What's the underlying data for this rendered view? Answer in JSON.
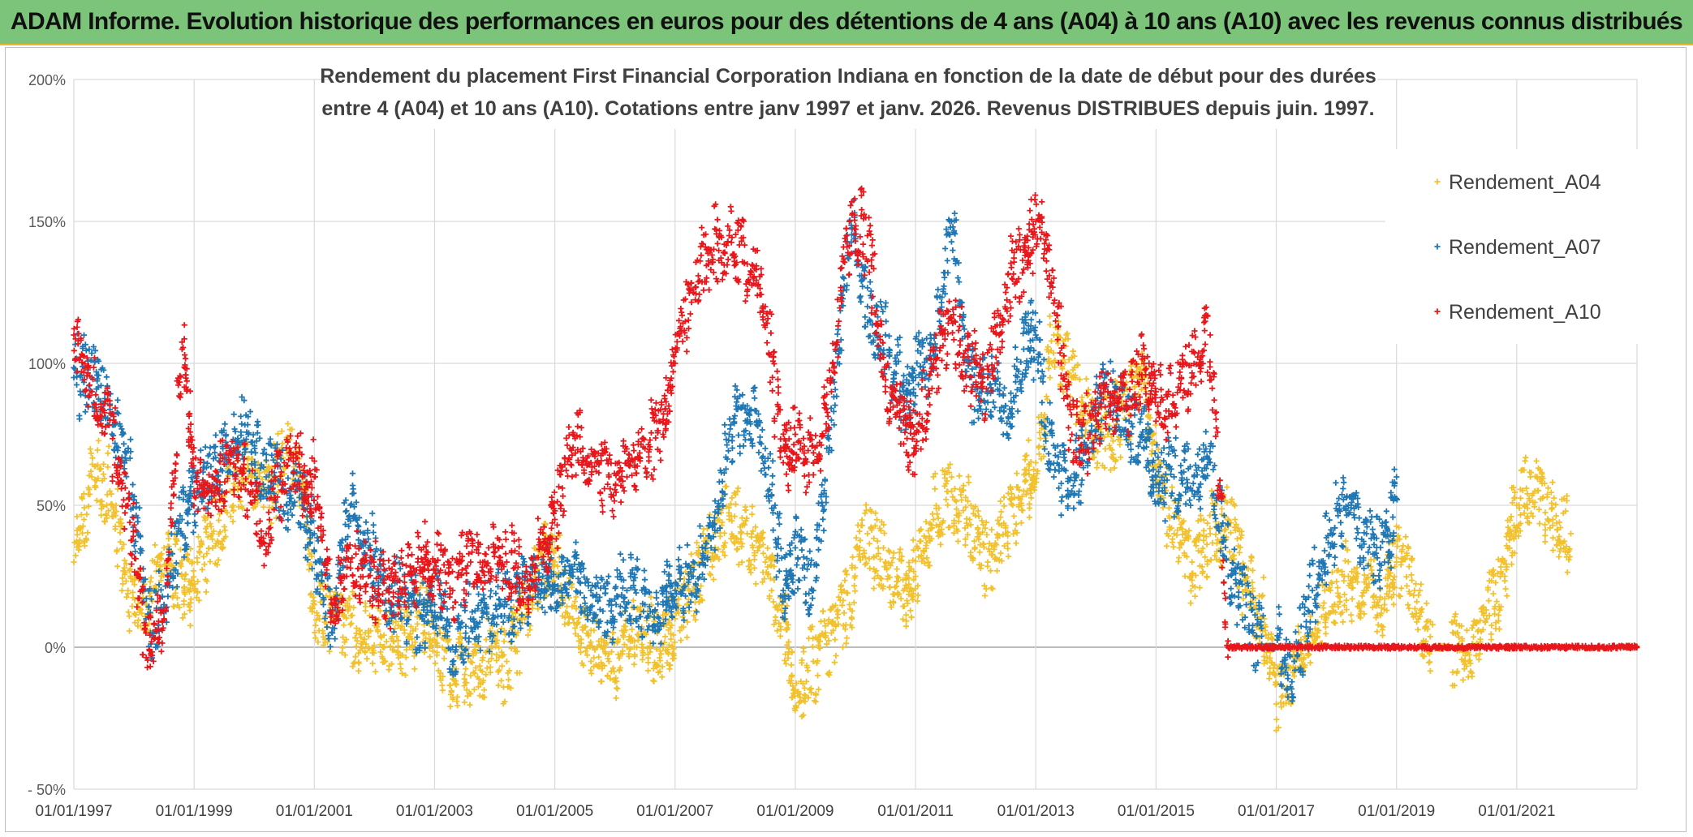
{
  "banner": {
    "title": "ADAM Informe. Evolution historique des performances en euros pour des détentions de 4 ans (A04) à 10 ans (A10) avec les revenus connus distribués"
  },
  "chart_data": {
    "type": "scatter",
    "title_lines": [
      "Rendement du placement First Financial Corporation Indiana en fonction de la date de début pour des durées",
      "entre 4 (A04) et 10 ans (A10). Cotations entre janv 1997 et janv. 2026. Revenus DISTRIBUES depuis juin. 1997."
    ],
    "xlabel": "",
    "ylabel": "",
    "x_range": [
      1997.0,
      2023.0
    ],
    "ylim": [
      -50,
      200
    ],
    "y_ticks": [
      -50,
      0,
      50,
      100,
      150,
      200
    ],
    "y_tick_labels": [
      "- 50%",
      "0%",
      "50%",
      "100%",
      "150%",
      "200%"
    ],
    "x_ticks": [
      1997,
      1999,
      2001,
      2003,
      2005,
      2007,
      2009,
      2011,
      2013,
      2015,
      2017,
      2019,
      2021
    ],
    "x_tick_labels": [
      "01/01/1997",
      "01/01/1999",
      "01/01/2001",
      "01/01/2003",
      "01/01/2005",
      "01/01/2007",
      "01/01/2009",
      "01/01/2011",
      "01/01/2013",
      "01/01/2015",
      "01/01/2017",
      "01/01/2019",
      "01/01/2021"
    ],
    "grid": true,
    "legend_position": "right",
    "marker": "+",
    "series": [
      {
        "name": "Rendement_A04",
        "color": "#f2c12e",
        "x": [
          1997.0,
          1997.3,
          1997.6,
          1997.9,
          1998.2,
          1998.5,
          1998.8,
          1999.0,
          1999.3,
          1999.6,
          1999.9,
          2000.2,
          2000.5,
          2000.8,
          2001.0,
          2001.3,
          2001.6,
          2001.9,
          2002.2,
          2002.5,
          2002.8,
          2003.0,
          2003.3,
          2003.6,
          2003.9,
          2004.2,
          2004.5,
          2004.8,
          2005.0,
          2005.3,
          2005.6,
          2005.9,
          2006.2,
          2006.5,
          2006.8,
          2007.0,
          2007.3,
          2007.6,
          2007.9,
          2008.2,
          2008.5,
          2008.8,
          2009.0,
          2009.3,
          2009.6,
          2009.9,
          2010.2,
          2010.5,
          2010.8,
          2011.0,
          2011.3,
          2011.6,
          2011.9,
          2012.2,
          2012.5,
          2012.8,
          2013.0,
          2013.3,
          2013.6,
          2013.9,
          2014.2,
          2014.5,
          2014.8,
          2015.0,
          2015.3,
          2015.6,
          2015.9,
          2016.2,
          2016.5,
          2016.8,
          2017.0,
          2017.3,
          2017.6,
          2017.9,
          2018.2,
          2018.5,
          2018.8,
          2019.0,
          2019.3,
          2019.6,
          2019.9,
          2020.2,
          2020.5,
          2020.8,
          2021.0,
          2021.3,
          2021.6,
          2021.9
        ],
        "values": [
          30,
          60,
          55,
          20,
          15,
          35,
          25,
          20,
          40,
          55,
          60,
          55,
          65,
          60,
          15,
          10,
          8,
          5,
          2,
          5,
          10,
          5,
          -10,
          -10,
          -5,
          -5,
          10,
          30,
          30,
          10,
          -5,
          -5,
          0,
          5,
          0,
          10,
          20,
          35,
          45,
          40,
          30,
          10,
          -15,
          -5,
          5,
          15,
          40,
          30,
          20,
          25,
          45,
          55,
          45,
          30,
          40,
          55,
          65,
          110,
          95,
          80,
          75,
          85,
          95,
          60,
          40,
          30,
          40,
          45,
          20,
          10,
          -20,
          -5,
          5,
          20,
          25,
          20,
          15,
          30,
          20,
          0,
          0,
          -5,
          10,
          25,
          50,
          55,
          45,
          40
        ]
      },
      {
        "name": "Rendement_A07",
        "color": "#1f77b4",
        "x": [
          1997.0,
          1997.3,
          1997.6,
          1997.9,
          1998.2,
          1998.5,
          1998.8,
          1999.0,
          1999.3,
          1999.6,
          1999.9,
          2000.2,
          2000.5,
          2000.8,
          2001.0,
          2001.3,
          2001.6,
          2001.9,
          2002.2,
          2002.5,
          2002.8,
          2003.0,
          2003.3,
          2003.6,
          2003.9,
          2004.2,
          2004.5,
          2004.8,
          2005.0,
          2005.3,
          2005.6,
          2005.9,
          2006.2,
          2006.5,
          2006.8,
          2007.0,
          2007.3,
          2007.6,
          2007.9,
          2008.2,
          2008.5,
          2008.8,
          2009.0,
          2009.3,
          2009.6,
          2009.9,
          2010.2,
          2010.5,
          2010.8,
          2011.0,
          2011.3,
          2011.6,
          2011.9,
          2012.2,
          2012.5,
          2012.8,
          2013.0,
          2013.3,
          2013.6,
          2013.9,
          2014.2,
          2014.5,
          2014.8,
          2015.0,
          2015.3,
          2015.6,
          2015.9,
          2016.2,
          2016.5,
          2016.8,
          2017.0,
          2017.3,
          2017.6,
          2017.9,
          2018.2,
          2018.5,
          2018.8,
          2019.0
        ],
        "values": [
          95,
          95,
          80,
          70,
          10,
          15,
          45,
          55,
          60,
          70,
          75,
          60,
          55,
          50,
          40,
          5,
          50,
          35,
          20,
          15,
          10,
          15,
          0,
          10,
          10,
          15,
          20,
          25,
          20,
          25,
          20,
          15,
          20,
          15,
          15,
          20,
          25,
          35,
          75,
          85,
          70,
          20,
          35,
          20,
          80,
          150,
          120,
          110,
          90,
          95,
          105,
          150,
          95,
          90,
          85,
          105,
          110,
          60,
          55,
          75,
          90,
          80,
          70,
          60,
          60,
          55,
          65,
          25,
          15,
          0,
          0,
          -5,
          20,
          40,
          50,
          40,
          30,
          60
        ]
      },
      {
        "name": "Rendement_A10",
        "color": "#e8171b",
        "x": [
          1997.0,
          1997.3,
          1997.6,
          1997.9,
          1998.2,
          1998.5,
          1998.8,
          1999.0,
          1999.3,
          1999.6,
          1999.9,
          2000.2,
          2000.5,
          2000.8,
          2001.0,
          2001.3,
          2001.6,
          2001.9,
          2002.2,
          2002.5,
          2002.8,
          2003.0,
          2003.3,
          2003.6,
          2003.9,
          2004.2,
          2004.5,
          2004.8,
          2005.0,
          2005.3,
          2005.6,
          2005.9,
          2006.2,
          2006.5,
          2006.8,
          2007.0,
          2007.3,
          2007.6,
          2007.9,
          2008.2,
          2008.5,
          2008.8,
          2009.0,
          2009.3,
          2009.6,
          2009.9,
          2010.2,
          2010.5,
          2010.8,
          2011.0,
          2011.3,
          2011.6,
          2011.9,
          2012.2,
          2012.5,
          2012.8,
          2013.0,
          2013.3,
          2013.6,
          2013.9,
          2014.2,
          2014.5,
          2014.8,
          2015.0,
          2015.3,
          2015.6,
          2015.9,
          2016.2,
          2016.5,
          2016.8,
          2017.0,
          2017.3,
          2017.6,
          2017.9,
          2018.2,
          2018.5,
          2018.8,
          2019.0,
          2019.3,
          2019.6,
          2019.9,
          2020.2,
          2020.5,
          2020.8,
          2021.0,
          2021.3,
          2021.6,
          2021.9,
          2022.2,
          2022.5,
          2022.8,
          2023.0
        ],
        "values": [
          110,
          90,
          80,
          50,
          5,
          10,
          105,
          55,
          55,
          65,
          55,
          40,
          65,
          60,
          60,
          15,
          30,
          25,
          20,
          25,
          30,
          30,
          20,
          30,
          35,
          30,
          25,
          35,
          45,
          75,
          65,
          60,
          60,
          70,
          75,
          100,
          125,
          140,
          145,
          135,
          120,
          65,
          75,
          65,
          90,
          150,
          145,
          90,
          80,
          70,
          100,
          115,
          100,
          95,
          125,
          140,
          150,
          130,
          75,
          75,
          90,
          85,
          100,
          90,
          85,
          95,
          110,
          0,
          0,
          0,
          0,
          0,
          0,
          0,
          0,
          0,
          0,
          0,
          0,
          0,
          0,
          0,
          0,
          0,
          0,
          0,
          0,
          0,
          0,
          0,
          0,
          0
        ]
      }
    ]
  }
}
